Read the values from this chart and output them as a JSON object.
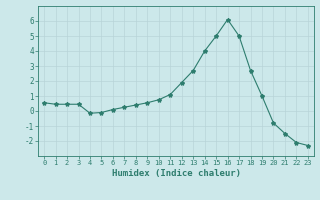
{
  "x": [
    0,
    1,
    2,
    3,
    4,
    5,
    6,
    7,
    8,
    9,
    10,
    11,
    12,
    13,
    14,
    15,
    16,
    17,
    18,
    19,
    20,
    21,
    22,
    23
  ],
  "y": [
    0.55,
    0.45,
    0.45,
    0.45,
    -0.15,
    -0.1,
    0.1,
    0.25,
    0.4,
    0.55,
    0.75,
    1.1,
    1.9,
    2.7,
    4.0,
    5.0,
    6.1,
    5.0,
    2.7,
    1.0,
    -0.8,
    -1.5,
    -2.1,
    -2.3
  ],
  "line_color": "#2e7d6e",
  "marker": "*",
  "marker_size": 3,
  "bg_color": "#cce8ea",
  "grid_color": "#b8d4d8",
  "xlabel": "Humidex (Indice chaleur)",
  "xlim": [
    -0.5,
    23.5
  ],
  "ylim": [
    -3,
    7
  ],
  "yticks": [
    -2,
    -1,
    0,
    1,
    2,
    3,
    4,
    5,
    6
  ],
  "xticks": [
    0,
    1,
    2,
    3,
    4,
    5,
    6,
    7,
    8,
    9,
    10,
    11,
    12,
    13,
    14,
    15,
    16,
    17,
    18,
    19,
    20,
    21,
    22,
    23
  ],
  "tick_color": "#2e7d6e",
  "label_color": "#2e7d6e",
  "xlabel_fontsize": 6.5,
  "xtick_fontsize": 5.0,
  "ytick_fontsize": 5.5
}
